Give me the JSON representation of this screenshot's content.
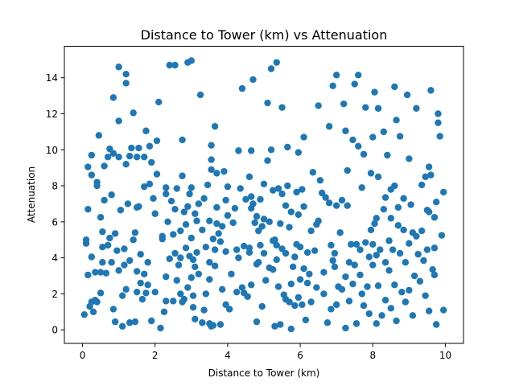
{
  "chart_data": {
    "type": "scatter",
    "title": "Distance to Tower (km) vs Attenuation",
    "xlabel": "Distance to Tower (km)",
    "ylabel": "Attenuation",
    "xlim": [
      -0.5,
      10.5
    ],
    "ylim": [
      -0.75,
      15.75
    ],
    "xticks": [
      0,
      2,
      4,
      6,
      8,
      10
    ],
    "yticks": [
      0,
      2,
      4,
      6,
      8,
      10,
      12,
      14
    ],
    "grid": false,
    "legend": "none",
    "marker_color": "#1f77b4",
    "points": [
      [
        0.05,
        0.85
      ],
      [
        0.1,
        4.8
      ],
      [
        0.1,
        5.0
      ],
      [
        0.15,
        3.05
      ],
      [
        0.15,
        9.05
      ],
      [
        0.2,
        1.3
      ],
      [
        0.25,
        1.55
      ],
      [
        0.25,
        4.05
      ],
      [
        0.25,
        8.6
      ],
      [
        0.25,
        9.7
      ],
      [
        0.3,
        1.0
      ],
      [
        0.35,
        1.65
      ],
      [
        0.35,
        3.2
      ],
      [
        0.4,
        1.55
      ],
      [
        0.4,
        8.0
      ],
      [
        0.4,
        8.2
      ],
      [
        0.45,
        10.8
      ],
      [
        0.5,
        2.05
      ],
      [
        0.5,
        3.2
      ],
      [
        0.5,
        6.25
      ],
      [
        0.55,
        3.75
      ],
      [
        0.55,
        5.45
      ],
      [
        0.55,
        4.6
      ],
      [
        0.6,
        7.2
      ],
      [
        0.65,
        3.15
      ],
      [
        0.7,
        4.7
      ],
      [
        0.7,
        9.6
      ],
      [
        0.75,
        10.05
      ],
      [
        0.75,
        5.1
      ],
      [
        0.8,
        3.75
      ],
      [
        0.8,
        7.5
      ],
      [
        0.85,
        1.15
      ],
      [
        0.85,
        9.8
      ],
      [
        0.85,
        12.9
      ],
      [
        0.9,
        0.45
      ],
      [
        0.9,
        5.35
      ],
      [
        0.95,
        4.4
      ],
      [
        1.0,
        14.6
      ],
      [
        1.0,
        11.6
      ],
      [
        1.0,
        9.6
      ],
      [
        1.0,
        3.3
      ],
      [
        1.05,
        6.65
      ],
      [
        1.1,
        0.2
      ],
      [
        1.1,
        1.9
      ],
      [
        1.15,
        3.6
      ],
      [
        1.15,
        4.5
      ],
      [
        1.2,
        14.2
      ],
      [
        1.2,
        13.7
      ],
      [
        1.2,
        9.2
      ],
      [
        1.2,
        2.25
      ],
      [
        1.25,
        7.0
      ],
      [
        1.3,
        0.4
      ],
      [
        1.3,
        3.85
      ],
      [
        1.3,
        9.65
      ],
      [
        1.35,
        10.1
      ],
      [
        1.4,
        5.0
      ],
      [
        1.4,
        12.05
      ],
      [
        1.45,
        0.45
      ],
      [
        1.45,
        5.4
      ],
      [
        1.5,
        2.1
      ],
      [
        1.5,
        3.25
      ],
      [
        1.5,
        6.8
      ],
      [
        1.5,
        9.6
      ],
      [
        1.55,
        6.85
      ],
      [
        1.55,
        10.1
      ],
      [
        1.6,
        2.6
      ],
      [
        1.6,
        4.2
      ],
      [
        1.65,
        1.7
      ],
      [
        1.7,
        3.1
      ],
      [
        1.7,
        7.95
      ],
      [
        1.7,
        9.6
      ],
      [
        1.75,
        11.05
      ],
      [
        1.75,
        2.05
      ],
      [
        1.8,
        2.5
      ],
      [
        1.8,
        3.75
      ],
      [
        1.85,
        8.1
      ],
      [
        1.85,
        10.2
      ],
      [
        1.9,
        0.5
      ],
      [
        1.95,
        7.3
      ],
      [
        2.0,
        2.1
      ],
      [
        2.0,
        6.45
      ],
      [
        2.05,
        8.65
      ],
      [
        2.05,
        10.5
      ],
      [
        2.1,
        12.65
      ],
      [
        2.15,
        0.1
      ],
      [
        2.2,
        5.2
      ],
      [
        2.2,
        5.05
      ],
      [
        2.25,
        1.0
      ],
      [
        2.3,
        7.9
      ],
      [
        2.3,
        7.55
      ],
      [
        2.3,
        2.95
      ],
      [
        2.35,
        6.0
      ],
      [
        2.4,
        14.7
      ],
      [
        2.4,
        3.95
      ],
      [
        2.45,
        7.15
      ],
      [
        2.5,
        1.6
      ],
      [
        2.5,
        5.3
      ],
      [
        2.55,
        14.7
      ],
      [
        2.55,
        6.7
      ],
      [
        2.55,
        4.25
      ],
      [
        2.6,
        2.75
      ],
      [
        2.6,
        7.85
      ],
      [
        2.65,
        3.6
      ],
      [
        2.7,
        2.0
      ],
      [
        2.7,
        4.0
      ],
      [
        2.7,
        5.5
      ],
      [
        2.75,
        10.55
      ],
      [
        2.75,
        8.55
      ],
      [
        2.75,
        1.55
      ],
      [
        2.8,
        6.55
      ],
      [
        2.8,
        1.7
      ],
      [
        2.85,
        4.55
      ],
      [
        2.85,
        5.85
      ],
      [
        2.9,
        14.85
      ],
      [
        2.9,
        6.85
      ],
      [
        2.9,
        2.35
      ],
      [
        2.95,
        4.1
      ],
      [
        2.95,
        7.55
      ],
      [
        3.0,
        14.95
      ],
      [
        3.0,
        7.9
      ],
      [
        3.0,
        5.1
      ],
      [
        3.0,
        2.9
      ],
      [
        3.05,
        3.9
      ],
      [
        3.05,
        1.9
      ],
      [
        3.05,
        1.25
      ],
      [
        3.1,
        6.45
      ],
      [
        3.1,
        3.5
      ],
      [
        3.1,
        0.6
      ],
      [
        3.15,
        6.05
      ],
      [
        3.15,
        4.3
      ],
      [
        3.2,
        3.1
      ],
      [
        3.2,
        7.0
      ],
      [
        3.25,
        13.05
      ],
      [
        3.3,
        5.55
      ],
      [
        3.3,
        0.4
      ],
      [
        3.35,
        7.3
      ],
      [
        3.35,
        1.1
      ],
      [
        3.4,
        2.0
      ],
      [
        3.4,
        4.6
      ],
      [
        3.45,
        8.05
      ],
      [
        3.5,
        2.8
      ],
      [
        3.5,
        6.05
      ],
      [
        3.5,
        3.75
      ],
      [
        3.5,
        0.35
      ],
      [
        3.55,
        10.25
      ],
      [
        3.55,
        9.45
      ],
      [
        3.55,
        8.9
      ],
      [
        3.55,
        0.2
      ],
      [
        3.6,
        5.05
      ],
      [
        3.6,
        0.25
      ],
      [
        3.65,
        11.3
      ],
      [
        3.65,
        4.45
      ],
      [
        3.65,
        3.55
      ],
      [
        3.7,
        8.7
      ],
      [
        3.7,
        6.8
      ],
      [
        3.7,
        5.9
      ],
      [
        3.75,
        5.35
      ],
      [
        3.8,
        4.9
      ],
      [
        3.8,
        0.3
      ],
      [
        3.85,
        2.25
      ],
      [
        3.9,
        8.8
      ],
      [
        3.95,
        1.4
      ],
      [
        3.95,
        4.35
      ],
      [
        3.95,
        7.2
      ],
      [
        4.0,
        6.35
      ],
      [
        4.0,
        7.95
      ],
      [
        4.05,
        1.15
      ],
      [
        4.1,
        3.1
      ],
      [
        4.15,
        5.95
      ],
      [
        4.2,
        6.75
      ],
      [
        4.25,
        4.45
      ],
      [
        4.25,
        2.1
      ],
      [
        4.3,
        9.95
      ],
      [
        4.3,
        4.0
      ],
      [
        4.35,
        7.85
      ],
      [
        4.4,
        2.35
      ],
      [
        4.4,
        13.4
      ],
      [
        4.45,
        4.65
      ],
      [
        4.5,
        7.25
      ],
      [
        4.55,
        1.85
      ],
      [
        4.6,
        8.5
      ],
      [
        4.6,
        4.3
      ],
      [
        4.6,
        4.55
      ],
      [
        4.65,
        6.75
      ],
      [
        4.65,
        7.4
      ],
      [
        4.65,
        2.5
      ],
      [
        4.65,
        9.95
      ],
      [
        4.7,
        13.9
      ],
      [
        4.7,
        7.0
      ],
      [
        4.75,
        5.95
      ],
      [
        4.8,
        0.45
      ],
      [
        4.8,
        3.65
      ],
      [
        4.8,
        6.3
      ],
      [
        4.85,
        3.75
      ],
      [
        4.85,
        5.5
      ],
      [
        4.9,
        7.25
      ],
      [
        4.9,
        4.7
      ],
      [
        4.95,
        5.75
      ],
      [
        4.95,
        1.3
      ],
      [
        5.0,
        4.25
      ],
      [
        5.0,
        6.15
      ],
      [
        5.0,
        8.1
      ],
      [
        5.05,
        2.75
      ],
      [
        5.1,
        12.6
      ],
      [
        5.1,
        9.4
      ],
      [
        5.15,
        6.0
      ],
      [
        5.15,
        3.45
      ],
      [
        5.2,
        14.5
      ],
      [
        5.2,
        10.0
      ],
      [
        5.25,
        7.75
      ],
      [
        5.25,
        4.95
      ],
      [
        5.3,
        5.0
      ],
      [
        5.3,
        0.2
      ],
      [
        5.35,
        14.85
      ],
      [
        5.35,
        4.7
      ],
      [
        5.35,
        3.9
      ],
      [
        5.4,
        2.4
      ],
      [
        5.4,
        7.85
      ],
      [
        5.45,
        5.9
      ],
      [
        5.45,
        0.3
      ],
      [
        5.5,
        4.5
      ],
      [
        5.5,
        12.35
      ],
      [
        5.5,
        7.55
      ],
      [
        5.55,
        1.95
      ],
      [
        5.6,
        6.9
      ],
      [
        5.6,
        1.7
      ],
      [
        5.6,
        4.25
      ],
      [
        5.65,
        10.15
      ],
      [
        5.65,
        8.0
      ],
      [
        5.7,
        5.7
      ],
      [
        5.7,
        1.55
      ],
      [
        5.75,
        2.55
      ],
      [
        5.75,
        0.05
      ],
      [
        5.75,
        6.55
      ],
      [
        5.8,
        3.5
      ],
      [
        5.85,
        1.35
      ],
      [
        5.85,
        4.05
      ],
      [
        5.9,
        4.75
      ],
      [
        5.9,
        7.65
      ],
      [
        5.95,
        1.8
      ],
      [
        5.95,
        6.4
      ],
      [
        5.95,
        9.85
      ],
      [
        6.0,
        4.6
      ],
      [
        6.0,
        2.8
      ],
      [
        6.05,
        7.8
      ],
      [
        6.05,
        1.4
      ],
      [
        6.1,
        10.7
      ],
      [
        6.1,
        6.85
      ],
      [
        6.1,
        3.4
      ],
      [
        6.15,
        0.55
      ],
      [
        6.2,
        4.3
      ],
      [
        6.2,
        2.6
      ],
      [
        6.25,
        3.1
      ],
      [
        6.3,
        1.55
      ],
      [
        6.3,
        5.5
      ],
      [
        6.35,
        8.75
      ],
      [
        6.4,
        4.4
      ],
      [
        6.45,
        2.35
      ],
      [
        6.45,
        5.85
      ],
      [
        6.5,
        12.45
      ],
      [
        6.5,
        6.05
      ],
      [
        6.55,
        8.3
      ],
      [
        6.6,
        7.6
      ],
      [
        6.65,
        3.2
      ],
      [
        6.7,
        7.35
      ],
      [
        6.75,
        0.4
      ],
      [
        6.8,
        11.3
      ],
      [
        6.8,
        7.05
      ],
      [
        6.85,
        1.15
      ],
      [
        6.85,
        4.7
      ],
      [
        6.9,
        13.55
      ],
      [
        6.9,
        3.85
      ],
      [
        6.95,
        4.25
      ],
      [
        6.95,
        3.5
      ],
      [
        7.0,
        14.15
      ],
      [
        7.0,
        6.9
      ],
      [
        7.0,
        1.4
      ],
      [
        7.05,
        2.4
      ],
      [
        7.1,
        5.4
      ],
      [
        7.15,
        7.2
      ],
      [
        7.15,
        2.25
      ],
      [
        7.2,
        12.55
      ],
      [
        7.25,
        0.1
      ],
      [
        7.25,
        11.05
      ],
      [
        7.3,
        8.85
      ],
      [
        7.3,
        6.9
      ],
      [
        7.35,
        3.75
      ],
      [
        7.35,
        1.6
      ],
      [
        7.4,
        4.75
      ],
      [
        7.45,
        10.55
      ],
      [
        7.45,
        2.55
      ],
      [
        7.5,
        13.65
      ],
      [
        7.5,
        3.6
      ],
      [
        7.55,
        4.75
      ],
      [
        7.55,
        0.35
      ],
      [
        7.6,
        14.15
      ],
      [
        7.6,
        10.2
      ],
      [
        7.65,
        3.05
      ],
      [
        7.65,
        4.45
      ],
      [
        7.7,
        7.9
      ],
      [
        7.7,
        2.0
      ],
      [
        7.75,
        9.75
      ],
      [
        7.75,
        1.35
      ],
      [
        7.8,
        12.35
      ],
      [
        7.8,
        4.85
      ],
      [
        7.85,
        2.4
      ],
      [
        7.9,
        4.05
      ],
      [
        7.9,
        0.9
      ],
      [
        7.95,
        8.7
      ],
      [
        7.95,
        5.55
      ],
      [
        8.0,
        10.7
      ],
      [
        8.0,
        4.75
      ],
      [
        8.0,
        3.6
      ],
      [
        8.05,
        13.2
      ],
      [
        8.05,
        5.9
      ],
      [
        8.1,
        6.2
      ],
      [
        8.1,
        4.15
      ],
      [
        8.1,
        0.35
      ],
      [
        8.15,
        12.3
      ],
      [
        8.15,
        8.5
      ],
      [
        8.15,
        2.45
      ],
      [
        8.2,
        4.45
      ],
      [
        8.25,
        0.8
      ],
      [
        8.3,
        11.0
      ],
      [
        8.3,
        6.7
      ],
      [
        8.35,
        3.75
      ],
      [
        8.35,
        1.65
      ],
      [
        8.4,
        9.7
      ],
      [
        8.45,
        4.95
      ],
      [
        8.45,
        3.3
      ],
      [
        8.5,
        7.8
      ],
      [
        8.5,
        6.2
      ],
      [
        8.5,
        1.2
      ],
      [
        8.55,
        4.45
      ],
      [
        8.6,
        13.5
      ],
      [
        8.6,
        8.0
      ],
      [
        8.6,
        2.5
      ],
      [
        8.65,
        11.65
      ],
      [
        8.65,
        0.5
      ],
      [
        8.7,
        6.8
      ],
      [
        8.7,
        5.8
      ],
      [
        8.75,
        10.75
      ],
      [
        8.75,
        4.25
      ],
      [
        8.8,
        2.1
      ],
      [
        8.85,
        7.3
      ],
      [
        8.85,
        5.55
      ],
      [
        8.9,
        3.75
      ],
      [
        8.9,
        1.55
      ],
      [
        8.95,
        13.05
      ],
      [
        9.0,
        9.5
      ],
      [
        9.0,
        4.8
      ],
      [
        9.0,
        2.2
      ],
      [
        9.05,
        6.95
      ],
      [
        9.1,
        0.8
      ],
      [
        9.1,
        5.4
      ],
      [
        9.15,
        3.0
      ],
      [
        9.2,
        12.3
      ],
      [
        9.2,
        5.2
      ],
      [
        9.25,
        4.2
      ],
      [
        9.3,
        2.7
      ],
      [
        9.35,
        5.5
      ],
      [
        9.35,
        8.05
      ],
      [
        9.4,
        3.85
      ],
      [
        9.45,
        8.5
      ],
      [
        9.45,
        1.9
      ],
      [
        9.5,
        6.65
      ],
      [
        9.5,
        4.45
      ],
      [
        9.55,
        9.05
      ],
      [
        9.55,
        6.55
      ],
      [
        9.55,
        1.05
      ],
      [
        9.6,
        13.3
      ],
      [
        9.6,
        8.6
      ],
      [
        9.65,
        3.35
      ],
      [
        9.7,
        6.25
      ],
      [
        9.7,
        3.05
      ],
      [
        9.75,
        7.1
      ],
      [
        9.75,
        0.3
      ],
      [
        9.8,
        12.0
      ],
      [
        9.8,
        11.5
      ],
      [
        9.85,
        10.75
      ],
      [
        9.9,
        5.25
      ],
      [
        9.95,
        7.65
      ],
      [
        9.95,
        1.1
      ],
      [
        0.15,
        6.7
      ],
      [
        0.6,
        9.1
      ],
      [
        1.9,
        9.3
      ],
      [
        2.3,
        1.6
      ],
      [
        3.85,
        5.75
      ],
      [
        4.45,
        2.05
      ],
      [
        5.25,
        3.35
      ],
      [
        6.65,
        2.0
      ],
      [
        7.25,
        2.95
      ],
      [
        8.35,
        7.35
      ],
      [
        9.7,
        4.55
      ]
    ]
  }
}
